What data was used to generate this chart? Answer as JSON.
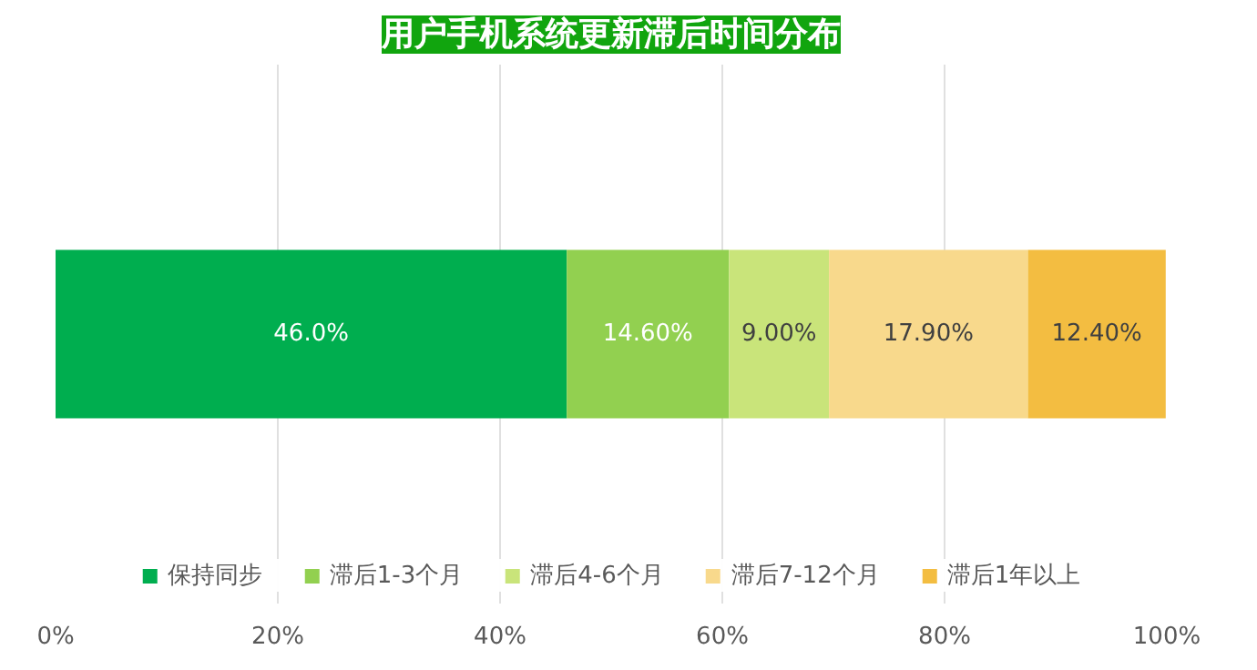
{
  "chart_data": {
    "type": "bar",
    "orientation": "horizontal",
    "stacked": true,
    "title": "用户手机系统更新滞后时间分布",
    "categories": [
      null
    ],
    "series": [
      {
        "name": "保持同步",
        "color": "#00ae4f",
        "values": [
          46.0
        ],
        "value_labels": [
          "46.0%"
        ]
      },
      {
        "name": "滞后1-3个月",
        "color": "#92d050",
        "values": [
          14.6
        ],
        "value_labels": [
          "14.60%"
        ]
      },
      {
        "name": "滞后4-6个月",
        "color": "#c9e47a",
        "values": [
          9.0
        ],
        "value_labels": [
          "9.00%"
        ]
      },
      {
        "name": "滞后7-12个月",
        "color": "#f8d98c",
        "values": [
          17.9
        ],
        "value_labels": [
          "17.90%"
        ]
      },
      {
        "name": "滞后1年以上",
        "color": "#f3bd41",
        "values": [
          12.4
        ],
        "value_labels": [
          "12.40%"
        ]
      }
    ],
    "xlim": [
      0,
      100
    ],
    "xticks": [
      {
        "value": 0,
        "label": "0%"
      },
      {
        "value": 20,
        "label": "20%"
      },
      {
        "value": 40,
        "label": "40%"
      },
      {
        "value": 60,
        "label": "60%"
      },
      {
        "value": 80,
        "label": "80%"
      },
      {
        "value": 100,
        "label": "100%"
      }
    ],
    "grid": "x",
    "legend": "bottom",
    "tick_labels": "x"
  }
}
